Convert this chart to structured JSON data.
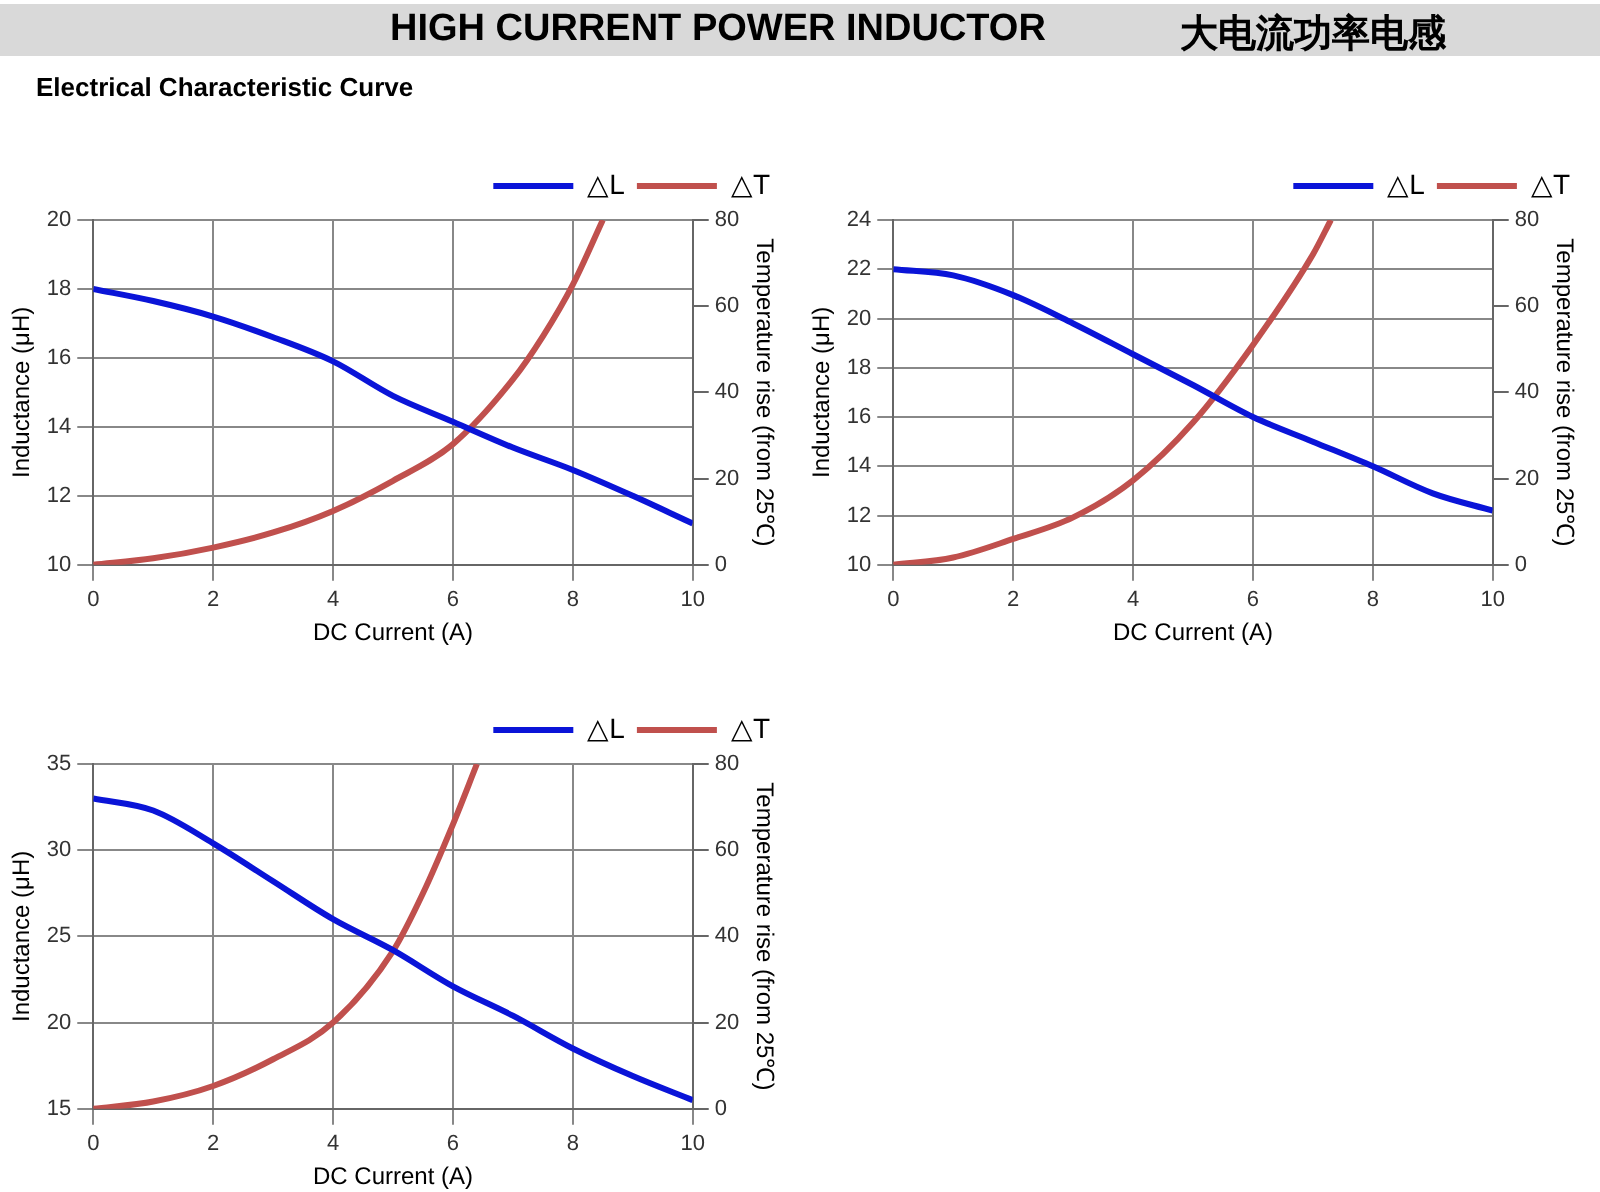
{
  "chart_data": [
    {
      "type": "line",
      "annotations": [
        "HIGH CURRENT POWER INDUCTOR",
        "大电流功率电感",
        "Electrical Characteristic Curve"
      ],
      "xlabel": "DC Current (A)",
      "ylabel": "Inductance (μH)",
      "y2label": "Temperature rise (from 25℃)",
      "xlim": [
        0,
        10
      ],
      "xticks": [
        0,
        2,
        4,
        6,
        8,
        10
      ],
      "ylim": [
        10,
        20
      ],
      "yticks": [
        10,
        12,
        14,
        16,
        18,
        20
      ],
      "y2lim": [
        0,
        80
      ],
      "y2ticks": [
        0,
        20,
        40,
        60,
        80
      ],
      "grid": true,
      "legend": "top right",
      "marker": "none",
      "line_style": "solid",
      "series": [
        {
          "name": "△L",
          "color": "#0a14d8",
          "x": [
            0,
            1,
            2,
            3,
            4,
            5,
            6,
            7,
            8,
            9,
            10
          ],
          "values": [
            18,
            17.65,
            17.2,
            16.6,
            15.9,
            14.9,
            14.15,
            13.4,
            12.75,
            12.0,
            11.2
          ]
        },
        {
          "name": "△T",
          "color": "#c0504d",
          "axis": "y2",
          "x": [
            0,
            1,
            2,
            3,
            4,
            5,
            6,
            7,
            7.5,
            8,
            8.5
          ],
          "values": [
            0,
            1.5,
            4,
            7.5,
            12.5,
            19.5,
            28,
            43,
            53,
            65,
            80
          ]
        }
      ]
    },
    {
      "type": "line",
      "xlabel": "DC Current (A)",
      "ylabel": "Inductance (μH)",
      "y2label": "Temperature rise (from 25℃)",
      "xlim": [
        0,
        10
      ],
      "xticks": [
        0,
        2,
        4,
        6,
        8,
        10
      ],
      "ylim": [
        10,
        24
      ],
      "yticks": [
        10,
        12,
        14,
        16,
        18,
        20,
        22,
        24
      ],
      "y2lim": [
        0,
        80
      ],
      "y2ticks": [
        0,
        20,
        40,
        60,
        80
      ],
      "grid": true,
      "legend": "top right",
      "marker": "none",
      "line_style": "solid",
      "series": [
        {
          "name": "△L",
          "color": "#0a14d8",
          "x": [
            0,
            1,
            2,
            3,
            4,
            5,
            6,
            7,
            8,
            9,
            10
          ],
          "values": [
            22,
            21.75,
            20.95,
            19.8,
            18.55,
            17.3,
            16,
            15,
            14,
            12.9,
            12.2
          ]
        },
        {
          "name": "△T",
          "color": "#c0504d",
          "axis": "y2",
          "x": [
            0,
            1,
            2,
            3,
            4,
            5,
            6,
            7,
            7.3
          ],
          "values": [
            0,
            1.7,
            6,
            11,
            19.6,
            33,
            51,
            72,
            80
          ]
        }
      ]
    },
    {
      "type": "line",
      "xlabel": "DC Current (A)",
      "ylabel": "Inductance (μH)",
      "y2label": "Temperature rise (from 25℃)",
      "xlim": [
        0,
        10
      ],
      "xticks": [
        0,
        2,
        4,
        6,
        8,
        10
      ],
      "ylim": [
        15,
        35
      ],
      "yticks": [
        15,
        20,
        25,
        30,
        35
      ],
      "y2lim": [
        0,
        80
      ],
      "y2ticks": [
        0,
        20,
        40,
        60,
        80
      ],
      "grid": true,
      "legend": "top right",
      "marker": "none",
      "line_style": "solid",
      "series": [
        {
          "name": "△L",
          "color": "#0a14d8",
          "x": [
            0,
            1,
            2,
            3,
            4,
            5,
            6,
            7,
            8,
            9,
            10
          ],
          "values": [
            33,
            32.3,
            30.4,
            28.2,
            26,
            24.2,
            22.1,
            20.4,
            18.5,
            16.9,
            15.5
          ]
        },
        {
          "name": "△T",
          "color": "#c0504d",
          "axis": "y2",
          "x": [
            0,
            1,
            2,
            3,
            4,
            5,
            5.5,
            6,
            6.4
          ],
          "values": [
            0,
            1.7,
            5.3,
            11.5,
            20,
            36.6,
            50,
            66,
            80
          ]
        }
      ]
    }
  ]
}
